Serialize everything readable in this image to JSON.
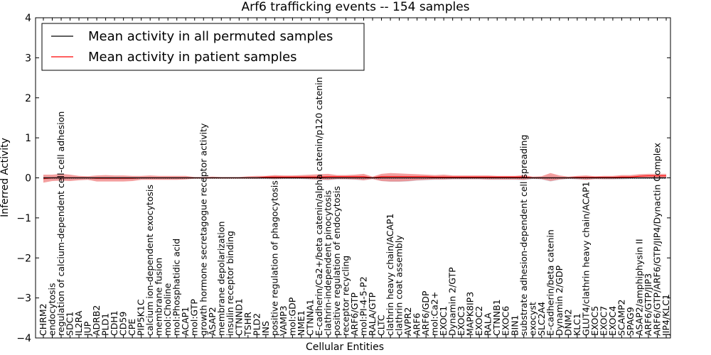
{
  "chart_data": {
    "type": "line",
    "title": "Arf6 trafficking events -- 154 samples",
    "xlabel": "Cellular Entities",
    "ylabel": "Inferred Activity",
    "ylim": [
      -4,
      4
    ],
    "yticks": [
      -4,
      -3,
      -2,
      -1,
      0,
      1,
      2,
      3,
      4
    ],
    "ytick_labels": [
      "−4",
      "−3",
      "−2",
      "−1",
      "0",
      "1",
      "2",
      "3",
      "4"
    ],
    "legend": {
      "placement": "top-left",
      "entries": [
        {
          "label": "Mean activity in all permuted samples",
          "color": "#000000"
        },
        {
          "label": "Mean activity in patient samples",
          "color": "#ff0000"
        }
      ]
    },
    "colors": {
      "patient_band": "#f08080",
      "permuted_band": "#b0b8c8",
      "patient_line": "#ff0000",
      "permuted_line": "#000000"
    },
    "categories": [
      "CHRM2",
      "endocytosis",
      "regulation of calcium-dependent cell-cell adhesion",
      "SDC1",
      "IL2RA",
      "JUP",
      "ADRB2",
      "PLD1",
      "CDH1",
      "CD59",
      "CPE",
      "PIP5K1C",
      "calcium ion-dependent exocytosis",
      "membrane fusion",
      "mol:Choline",
      "mol:Phosphatidic acid",
      "ACAP1",
      "mol:GTP",
      "growth hormone secretagogue receptor activity",
      "ASAP2",
      "membrane depolarization",
      "insulin receptor binding",
      "CTNND1",
      "TSHR",
      "PLD2",
      "INS",
      "positive regulation of phagocytosis",
      "VAMP3",
      "mol:GDP",
      "NME1",
      "CTNNA1",
      "E-cadherin/Ca2+/beta catenin/alpha catenin/p120 catenin",
      "clathrin-independent pinocytosis",
      "positive regulation of endocytosis",
      "receptor recycling",
      "ARF6/GTP",
      "mol:PI-4-5-P2",
      "RALA/GTP",
      "CLTC",
      "clathrin heavy chain/ACAP1",
      "clathrin coat assembly",
      "AVPR2",
      "ARF6",
      "ARF6/GDP",
      "mol:Ca2+",
      "EXOC1",
      "Dynamin 2/GTP",
      "EXOC3",
      "MAPK8IP3",
      "EXOC2",
      "RALA",
      "CTNNB1",
      "EXOC6",
      "BIN1",
      "substrate adhesion-dependent cell spreading",
      "exocyst",
      "SLC2A4",
      "E-cadherin/beta catenin",
      "Dynamin 2/GDP",
      "DNM2",
      "KLC1",
      "GLUT4/clathrin heavy chain/ACAP1",
      "EXOC5",
      "EXOC7",
      "EXOC4",
      "SCAMP2",
      "SPAG9",
      "ASAP2/amphiphysin II",
      "ARF6/GTP/JIP3",
      "ARF6/GTP/ARF6/GTP/JIP4/Dynactin Complex",
      "JIP4/KLC1"
    ],
    "series": [
      {
        "name": "Mean activity in patient samples",
        "values": [
          -0.02,
          0.0,
          0.0,
          0.0,
          0.0,
          0.0,
          -0.01,
          -0.01,
          -0.01,
          -0.01,
          -0.01,
          0.0,
          0.0,
          0.0,
          0.0,
          0.0,
          0.0,
          0.0,
          0.0,
          0.0,
          0.0,
          0.0,
          0.0,
          0.0,
          0.0,
          0.02,
          0.02,
          0.02,
          0.02,
          0.02,
          0.02,
          0.02,
          0.03,
          0.03,
          0.03,
          0.03,
          0.03,
          0.0,
          0.03,
          0.03,
          0.03,
          0.03,
          0.03,
          0.03,
          0.02,
          0.02,
          0.02,
          0.02,
          0.02,
          0.02,
          0.02,
          0.02,
          0.02,
          0.02,
          0.02,
          0.0,
          0.0,
          0.0,
          0.0,
          0.0,
          0.01,
          0.01,
          0.01,
          0.01,
          0.01,
          0.02,
          0.02,
          0.04,
          0.05,
          0.05,
          0.05
        ],
        "upper": [
          0.08,
          0.08,
          0.1,
          0.08,
          0.05,
          0.04,
          0.06,
          0.07,
          0.06,
          0.06,
          0.05,
          0.05,
          0.06,
          0.05,
          0.05,
          0.05,
          0.05,
          0.02,
          0.02,
          0.03,
          0.02,
          0.02,
          0.02,
          0.04,
          0.05,
          0.05,
          0.07,
          0.06,
          0.06,
          0.07,
          0.08,
          0.09,
          0.1,
          0.07,
          0.07,
          0.08,
          0.1,
          0.03,
          0.1,
          0.12,
          0.11,
          0.1,
          0.09,
          0.08,
          0.07,
          0.08,
          0.06,
          0.06,
          0.06,
          0.06,
          0.06,
          0.05,
          0.05,
          0.05,
          0.07,
          0.03,
          0.04,
          0.12,
          0.06,
          0.03,
          0.05,
          0.06,
          0.04,
          0.05,
          0.05,
          0.07,
          0.07,
          0.09,
          0.1,
          0.1,
          0.1
        ],
        "lower": [
          -0.12,
          -0.08,
          -0.07,
          -0.08,
          -0.06,
          -0.05,
          -0.09,
          -0.09,
          -0.09,
          -0.09,
          -0.08,
          -0.05,
          -0.05,
          -0.05,
          -0.05,
          -0.05,
          -0.04,
          -0.02,
          -0.02,
          -0.02,
          -0.02,
          -0.02,
          -0.02,
          -0.02,
          -0.02,
          -0.02,
          -0.03,
          -0.02,
          -0.02,
          -0.02,
          -0.03,
          -0.04,
          -0.05,
          -0.03,
          -0.03,
          -0.04,
          -0.06,
          -0.03,
          -0.08,
          -0.09,
          -0.09,
          -0.08,
          -0.06,
          -0.05,
          -0.04,
          -0.04,
          -0.03,
          -0.03,
          -0.03,
          -0.03,
          -0.04,
          -0.04,
          -0.04,
          -0.04,
          -0.05,
          -0.02,
          -0.03,
          -0.08,
          -0.04,
          -0.02,
          -0.03,
          -0.05,
          -0.03,
          -0.03,
          -0.03,
          -0.02,
          -0.01,
          0.0,
          0.0,
          0.0,
          0.0
        ]
      },
      {
        "name": "Mean activity in all permuted samples",
        "values": [
          0.0,
          0.0,
          0.0,
          0.0,
          0.0,
          0.0,
          0.0,
          0.0,
          0.0,
          0.0,
          0.0,
          0.0,
          0.0,
          0.0,
          0.0,
          0.0,
          0.0,
          0.0,
          0.0,
          0.0,
          0.0,
          0.0,
          0.0,
          0.0,
          0.0,
          0.0,
          0.0,
          0.0,
          0.0,
          0.0,
          0.0,
          0.0,
          0.0,
          0.0,
          0.0,
          0.0,
          0.0,
          0.0,
          0.0,
          0.0,
          0.0,
          0.0,
          0.0,
          0.0,
          0.0,
          0.0,
          0.0,
          0.0,
          0.0,
          0.0,
          0.0,
          0.0,
          0.0,
          0.0,
          0.0,
          0.0,
          0.0,
          0.0,
          0.0,
          0.0,
          0.0,
          0.0,
          0.0,
          0.0,
          0.0,
          0.0,
          0.0,
          0.0,
          0.0,
          0.0,
          0.0
        ],
        "upper": [
          0.04,
          0.04,
          0.05,
          0.04,
          0.03,
          0.03,
          0.03,
          0.03,
          0.03,
          0.03,
          0.03,
          0.02,
          0.02,
          0.02,
          0.02,
          0.02,
          0.02,
          0.01,
          0.01,
          0.02,
          0.01,
          0.01,
          0.01,
          0.02,
          0.03,
          0.03,
          0.04,
          0.03,
          0.03,
          0.03,
          0.04,
          0.04,
          0.05,
          0.04,
          0.04,
          0.04,
          0.05,
          0.02,
          0.06,
          0.06,
          0.06,
          0.05,
          0.05,
          0.04,
          0.04,
          0.04,
          0.03,
          0.03,
          0.03,
          0.03,
          0.03,
          0.03,
          0.03,
          0.03,
          0.04,
          0.02,
          0.03,
          0.06,
          0.03,
          0.02,
          0.03,
          0.03,
          0.02,
          0.03,
          0.03,
          0.03,
          0.03,
          0.03,
          0.03,
          0.03,
          0.03
        ],
        "lower": [
          -0.05,
          -0.05,
          -0.06,
          -0.05,
          -0.04,
          -0.04,
          -0.05,
          -0.05,
          -0.05,
          -0.05,
          -0.04,
          -0.03,
          -0.03,
          -0.03,
          -0.03,
          -0.03,
          -0.02,
          -0.01,
          -0.01,
          -0.02,
          -0.01,
          -0.01,
          -0.01,
          -0.02,
          -0.03,
          -0.03,
          -0.04,
          -0.03,
          -0.03,
          -0.03,
          -0.04,
          -0.05,
          -0.06,
          -0.04,
          -0.04,
          -0.05,
          -0.06,
          -0.02,
          -0.08,
          -0.1,
          -0.1,
          -0.09,
          -0.07,
          -0.06,
          -0.05,
          -0.05,
          -0.04,
          -0.04,
          -0.04,
          -0.04,
          -0.05,
          -0.05,
          -0.05,
          -0.05,
          -0.06,
          -0.03,
          -0.04,
          -0.09,
          -0.05,
          -0.03,
          -0.04,
          -0.05,
          -0.03,
          -0.04,
          -0.04,
          -0.04,
          -0.03,
          -0.03,
          -0.03,
          -0.03,
          -0.03
        ]
      }
    ]
  }
}
